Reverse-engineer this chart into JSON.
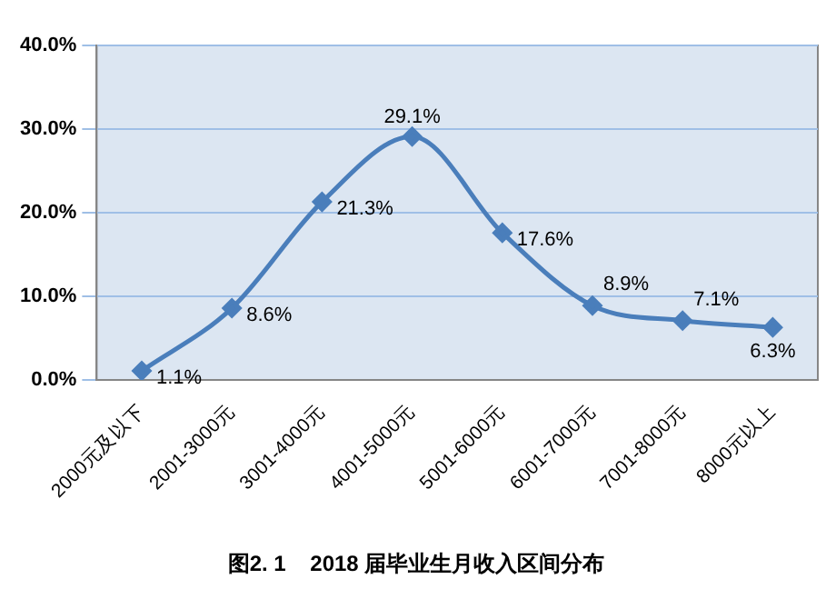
{
  "chart_data": {
    "type": "line",
    "title": "图2. 1    2018 届毕业生月收入区间分布",
    "categories": [
      "2000元及以下",
      "2001-3000元",
      "3001-4000元",
      "4001-5000元",
      "5001-6000元",
      "6001-7000元",
      "7001-8000元",
      "8000元以上"
    ],
    "series": [
      {
        "color": "#4a7ebb",
        "values": [
          1.1,
          8.6,
          21.3,
          29.1,
          17.6,
          8.9,
          7.1,
          6.3
        ],
        "value_labels": [
          "1.1%",
          "8.6%",
          "21.3%",
          "29.1%",
          "17.6%",
          "8.9%",
          "7.1%",
          "6.3%"
        ]
      }
    ],
    "ylim": [
      0,
      40
    ],
    "yticks": [
      {
        "value": 0,
        "label": "0.0%"
      },
      {
        "value": 10,
        "label": "10.0%"
      },
      {
        "value": 20,
        "label": "20.0%"
      },
      {
        "value": 30,
        "label": "30.0%"
      },
      {
        "value": 40,
        "label": "40.0%"
      }
    ],
    "grid": "y",
    "legend": false,
    "marker": "diamond",
    "line_style": "solid"
  }
}
